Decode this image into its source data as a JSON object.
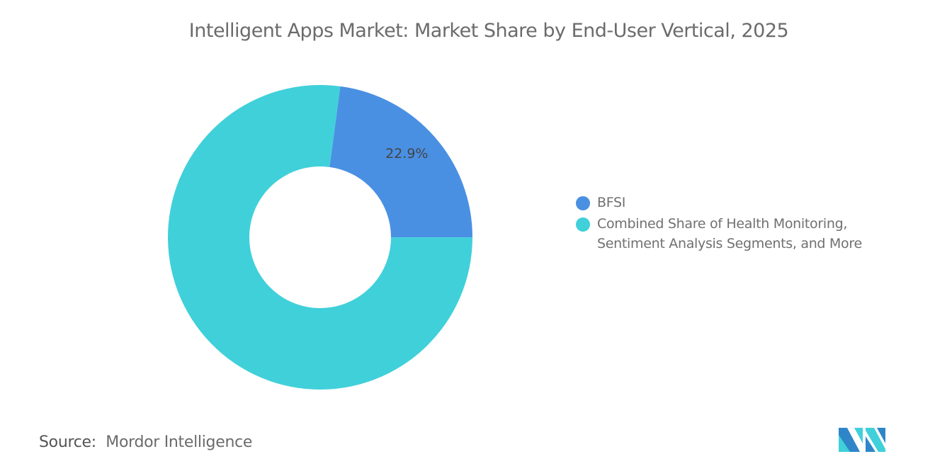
{
  "chart_data": {
    "type": "pie",
    "title": "Intelligent Apps Market: Market Share by End-User Vertical, 2025",
    "donut": true,
    "slices": [
      {
        "name": "BFSI",
        "value": 22.9,
        "label": "22.9%",
        "color": "#4a90e2"
      },
      {
        "name": "Combined Share of Health Monitoring, Sentiment Analysis Segments, and More",
        "value": 77.1,
        "label": null,
        "color": "#40d0da"
      }
    ],
    "legend_position": "right"
  },
  "legend": {
    "line1": "Combined Share of Health Monitoring,",
    "line2": "Sentiment Analysis Segments, and More"
  },
  "source": {
    "label": "Source:",
    "value": "Mordor Intelligence"
  },
  "logo": {
    "text": "Mordor Intelligence",
    "colors": [
      "#2e86c8",
      "#40d0da"
    ]
  }
}
